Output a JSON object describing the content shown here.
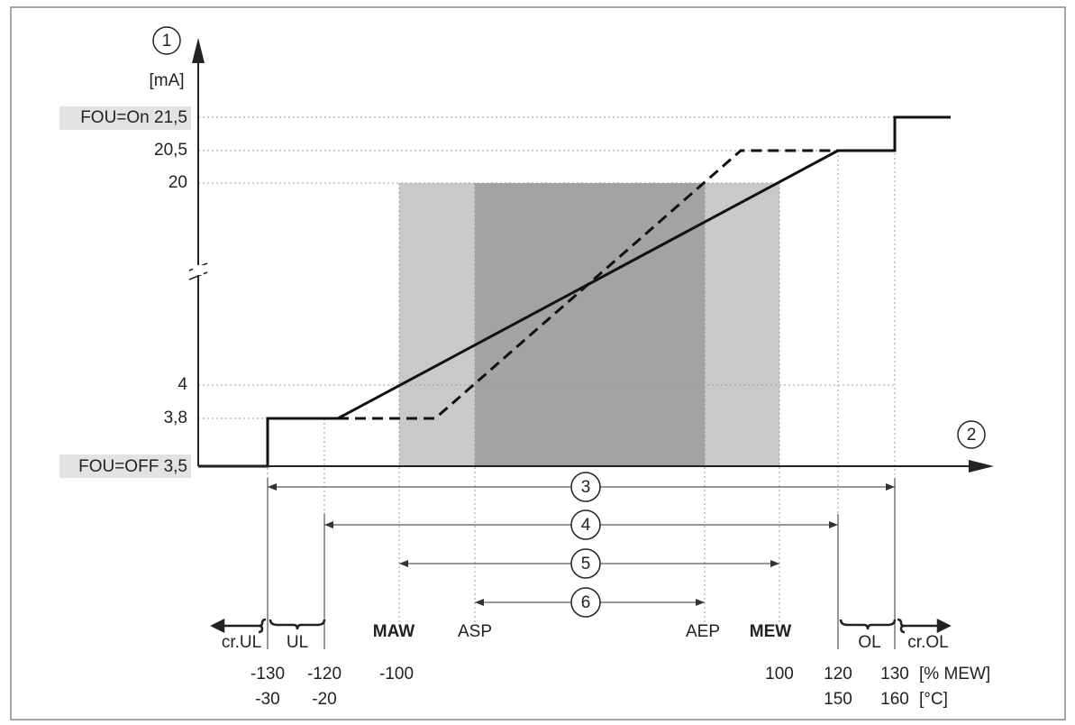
{
  "y_axis": {
    "marker": "1",
    "unit": "[mA]",
    "labels": [
      "FOU=On 21,5",
      "20,5",
      "20",
      "4",
      "3,8",
      "FOU=OFF 3,5"
    ]
  },
  "x_axis": {
    "marker": "2"
  },
  "ranges": [
    "3",
    "4",
    "5",
    "6"
  ],
  "points": [
    "cr.UL",
    "UL",
    "MAW",
    "ASP",
    "AEP",
    "MEW",
    "OL",
    "cr.OL"
  ],
  "percent_scale": {
    "values": [
      "-130",
      "-120",
      "-100",
      "100",
      "120",
      "130"
    ],
    "unit": "[% MEW]"
  },
  "celsius_scale": {
    "values": [
      "-30",
      "-20",
      "150",
      "160"
    ],
    "unit": "[°C]"
  }
}
